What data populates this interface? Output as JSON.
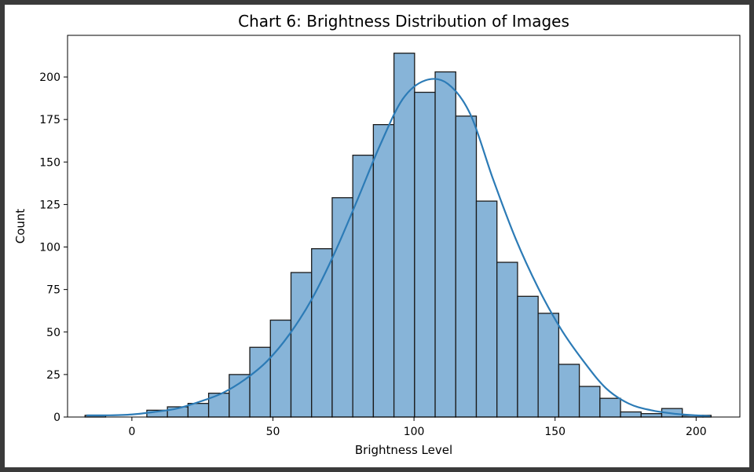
{
  "chart_data": {
    "type": "bar",
    "title": "Chart 6: Brightness Distribution of Images",
    "xlabel": "Brightness Level",
    "ylabel": "Count",
    "xlim": [
      -22.8,
      215.5
    ],
    "ylim": [
      0,
      224.5
    ],
    "xticks": [
      0,
      50,
      100,
      150,
      200
    ],
    "yticks": [
      0,
      25,
      50,
      75,
      100,
      125,
      150,
      175,
      200
    ],
    "grid": false,
    "bar_color": "#87b4d8",
    "edge_color": "#1a1a1a",
    "kde_color": "#2c7bb6",
    "bin_edges": [
      -16.6,
      -9.3,
      -2.0,
      5.3,
      12.6,
      19.9,
      27.2,
      34.5,
      41.8,
      49.1,
      56.4,
      63.7,
      71.0,
      78.3,
      85.6,
      92.9,
      100.2,
      107.5,
      114.8,
      122.1,
      129.4,
      136.7,
      144.0,
      151.3,
      158.6,
      165.9,
      173.2,
      180.5,
      187.8,
      195.1,
      202.4,
      205.3
    ],
    "counts": [
      1,
      0,
      0,
      4,
      6,
      8,
      14,
      25,
      41,
      57,
      85,
      99,
      129,
      154,
      172,
      214,
      191,
      203,
      177,
      127,
      91,
      71,
      61,
      31,
      18,
      11,
      3,
      2,
      5,
      1,
      1
    ],
    "kde": {
      "x": [
        -16,
        -8,
        0,
        8,
        16,
        24,
        32,
        40,
        48,
        56,
        64,
        72,
        80,
        88,
        96,
        104,
        112,
        120,
        128,
        136,
        144,
        152,
        160,
        168,
        176,
        184,
        192,
        200,
        205
      ],
      "y": [
        1,
        1,
        1.5,
        3,
        5,
        9,
        14,
        22,
        33,
        49,
        70,
        97,
        128,
        160,
        187,
        198,
        196,
        178,
        140,
        105,
        76,
        52,
        33,
        17,
        8,
        4,
        2,
        1,
        0.5
      ]
    }
  }
}
